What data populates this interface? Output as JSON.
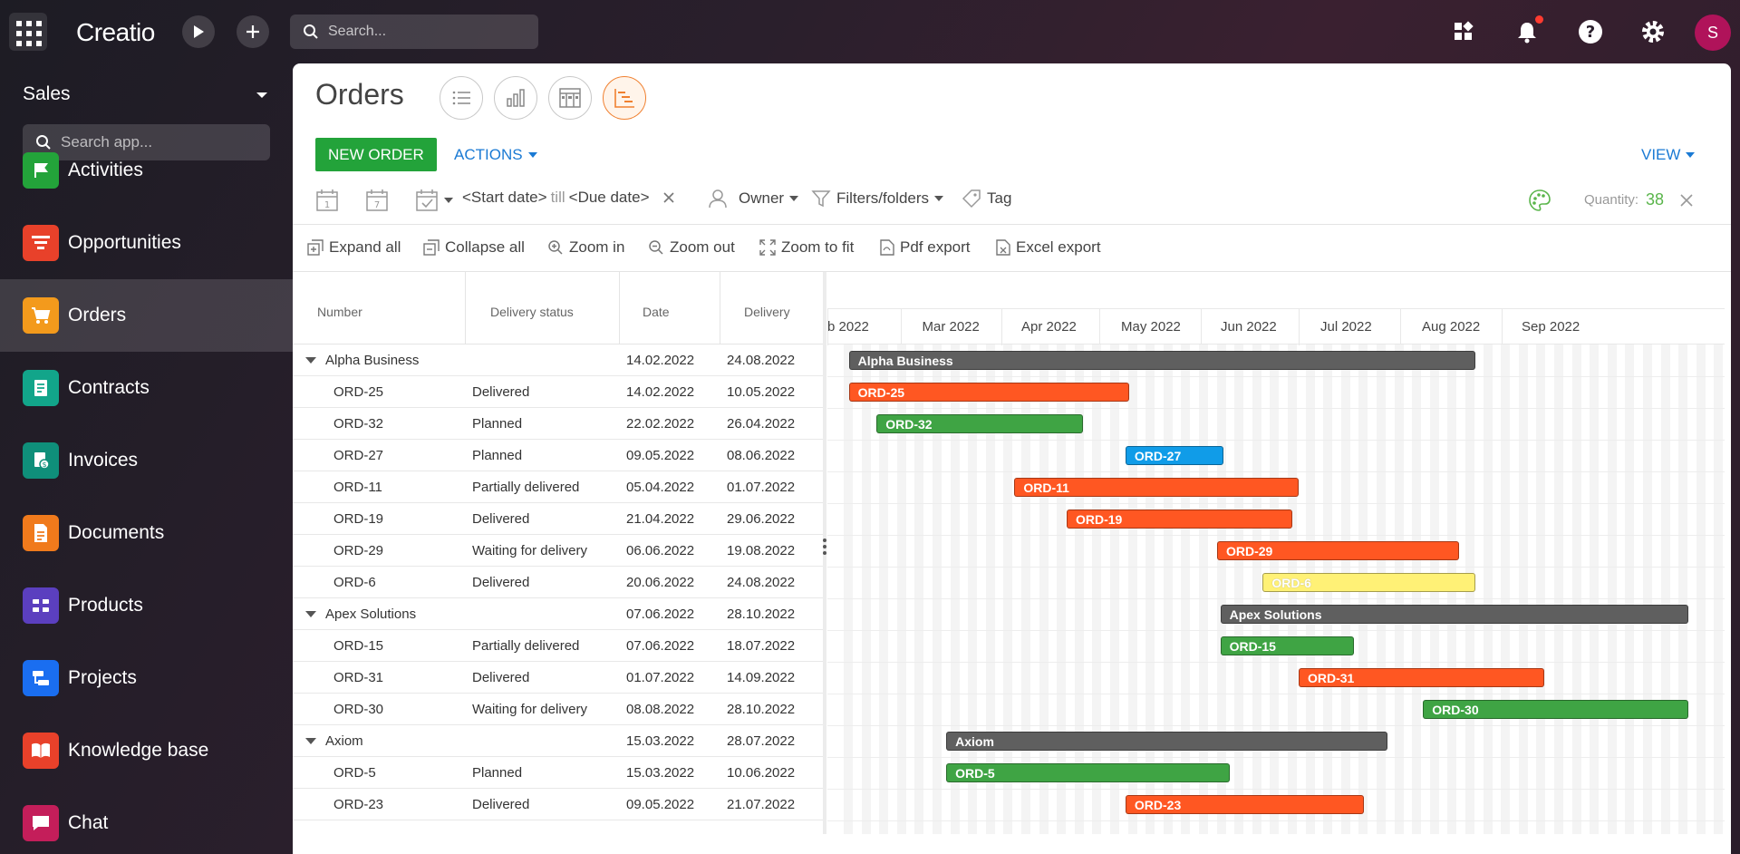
{
  "topbar": {
    "logo": "Creatio",
    "search_placeholder": "Search...",
    "avatar_initial": "S"
  },
  "sidebar": {
    "app_title": "Sales",
    "search_placeholder": "Search app...",
    "items": [
      {
        "label": "Activities",
        "icon": "flag-icon",
        "color": "#23a33a"
      },
      {
        "label": "Opportunities",
        "icon": "funnel-icon",
        "color": "#e8412a"
      },
      {
        "label": "Orders",
        "icon": "cart-icon",
        "color": "#f39a1c"
      },
      {
        "label": "Contracts",
        "icon": "contract-icon",
        "color": "#12a58a"
      },
      {
        "label": "Invoices",
        "icon": "invoice-icon",
        "color": "#0f8f7a"
      },
      {
        "label": "Documents",
        "icon": "document-icon",
        "color": "#f07a1c"
      },
      {
        "label": "Products",
        "icon": "products-icon",
        "color": "#5b3fbf"
      },
      {
        "label": "Projects",
        "icon": "projects-icon",
        "color": "#1a6ef0"
      },
      {
        "label": "Knowledge base",
        "icon": "book-icon",
        "color": "#e8412a"
      },
      {
        "label": "Chat",
        "icon": "chat-icon",
        "color": "#c41e5a"
      }
    ]
  },
  "page": {
    "title": "Orders",
    "new_order_label": "NEW ORDER",
    "actions_label": "ACTIONS",
    "view_label": "VIEW"
  },
  "filters": {
    "start_date": "<Start date>",
    "till": "till",
    "due_date": "<Due date>",
    "owner": "Owner",
    "filters_folders": "Filters/folders",
    "tag": "Tag",
    "quantity_label": "Quantity:",
    "quantity_value": "38"
  },
  "toolbar": {
    "expand_all": "Expand all",
    "collapse_all": "Collapse all",
    "zoom_in": "Zoom in",
    "zoom_out": "Zoom out",
    "zoom_to_fit": "Zoom to fit",
    "pdf_export": "Pdf export",
    "excel_export": "Excel export"
  },
  "columns": {
    "number": "Number",
    "delivery_status": "Delivery status",
    "date": "Date",
    "delivery": "Delivery"
  },
  "months": [
    "b 2022",
    "Mar 2022",
    "Apr 2022",
    "May 2022",
    "Jun 2022",
    "Jul 2022",
    "Aug 2022",
    "Sep 2022"
  ],
  "rows": [
    {
      "type": "group",
      "number": "Alpha Business",
      "status": "",
      "date": "14.02.2022",
      "delivery": "24.08.2022",
      "bar_color": "#5f5f5f",
      "bar_label": "Alpha Business"
    },
    {
      "type": "item",
      "number": "ORD-25",
      "status": "Delivered",
      "date": "14.02.2022",
      "delivery": "10.05.2022",
      "bar_color": "#ff5722",
      "bar_label": "ORD-25"
    },
    {
      "type": "item",
      "number": "ORD-32",
      "status": "Planned",
      "date": "22.02.2022",
      "delivery": "26.04.2022",
      "bar_color": "#3fa444",
      "bar_label": "ORD-32"
    },
    {
      "type": "item",
      "number": "ORD-27",
      "status": "Planned",
      "date": "09.05.2022",
      "delivery": "08.06.2022",
      "bar_color": "#109ce8",
      "bar_label": "ORD-27"
    },
    {
      "type": "item",
      "number": "ORD-11",
      "status": "Partially delivered",
      "date": "05.04.2022",
      "delivery": "01.07.2022",
      "bar_color": "#ff5722",
      "bar_label": "ORD-11"
    },
    {
      "type": "item",
      "number": "ORD-19",
      "status": "Delivered",
      "date": "21.04.2022",
      "delivery": "29.06.2022",
      "bar_color": "#ff5722",
      "bar_label": "ORD-19"
    },
    {
      "type": "item",
      "number": "ORD-29",
      "status": "Waiting for delivery",
      "date": "06.06.2022",
      "delivery": "19.08.2022",
      "bar_color": "#ff5722",
      "bar_label": "ORD-29"
    },
    {
      "type": "item",
      "number": "ORD-6",
      "status": "Delivered",
      "date": "20.06.2022",
      "delivery": "24.08.2022",
      "bar_color": "#fff176",
      "bar_label": "ORD-6"
    },
    {
      "type": "group",
      "number": "Apex Solutions",
      "status": "",
      "date": "07.06.2022",
      "delivery": "28.10.2022",
      "bar_color": "#5f5f5f",
      "bar_label": "Apex Solutions"
    },
    {
      "type": "item",
      "number": "ORD-15",
      "status": "Partially delivered",
      "date": "07.06.2022",
      "delivery": "18.07.2022",
      "bar_color": "#3fa444",
      "bar_label": "ORD-15"
    },
    {
      "type": "item",
      "number": "ORD-31",
      "status": "Delivered",
      "date": "01.07.2022",
      "delivery": "14.09.2022",
      "bar_color": "#ff5722",
      "bar_label": "ORD-31"
    },
    {
      "type": "item",
      "number": "ORD-30",
      "status": "Waiting for delivery",
      "date": "08.08.2022",
      "delivery": "28.10.2022",
      "bar_color": "#3fa444",
      "bar_label": "ORD-30"
    },
    {
      "type": "group",
      "number": "Axiom",
      "status": "",
      "date": "15.03.2022",
      "delivery": "28.07.2022",
      "bar_color": "#5f5f5f",
      "bar_label": "Axiom"
    },
    {
      "type": "item",
      "number": "ORD-5",
      "status": "Planned",
      "date": "15.03.2022",
      "delivery": "10.06.2022",
      "bar_color": "#3fa444",
      "bar_label": "ORD-5"
    },
    {
      "type": "item",
      "number": "ORD-23",
      "status": "Delivered",
      "date": "09.05.2022",
      "delivery": "21.07.2022",
      "bar_color": "#ff5722",
      "bar_label": "ORD-23"
    }
  ]
}
